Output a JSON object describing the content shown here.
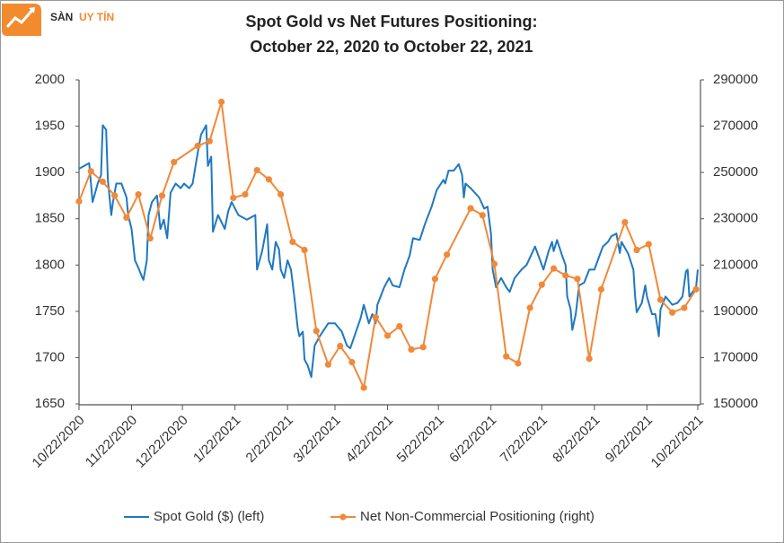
{
  "watermark": {
    "first": "SÀN",
    "second": "UY TÍN"
  },
  "chart_data": {
    "type": "line",
    "title": "Spot Gold vs Net Futures Positioning:",
    "subtitle": "October 22, 2020 to October 22, 2021",
    "xlim": [
      "10/22/2020",
      "10/22/2021"
    ],
    "xticks": [
      "10/22/2020",
      "11/22/2020",
      "12/22/2020",
      "1/22/2021",
      "2/22/2021",
      "3/22/2021",
      "4/22/2021",
      "5/22/2021",
      "6/22/2021",
      "7/22/2021",
      "8/22/2021",
      "9/22/2021",
      "10/22/2021"
    ],
    "ylim": [
      1650,
      2000
    ],
    "yticks": [
      1650,
      1700,
      1750,
      1800,
      1850,
      1900,
      1950,
      2000
    ],
    "y2lim": [
      150000,
      290000
    ],
    "y2ticks": [
      150000,
      170000,
      190000,
      210000,
      230000,
      250000,
      270000,
      290000
    ],
    "grid": false,
    "legend": "bottom",
    "series": [
      {
        "name": "Spot Gold ($) (left)",
        "color": "#1f78c1",
        "axis": "y",
        "x": [
          "10/22/2020",
          "10/28/2020",
          "10/30/2020",
          "11/2/2020",
          "11/4/2020",
          "11/5/2020",
          "11/7/2020",
          "11/8/2020",
          "11/10/2020",
          "11/11/2020",
          "11/13/2020",
          "11/16/2020",
          "11/19/2020",
          "11/20/2020",
          "11/22/2020",
          "11/24/2020",
          "11/26/2020",
          "11/28/2020",
          "11/29/2020",
          "12/1/2020",
          "12/2/2020",
          "12/4/2020",
          "12/7/2020",
          "12/9/2020",
          "12/11/2020",
          "12/13/2020",
          "12/15/2020",
          "12/18/2020",
          "12/21/2020",
          "12/23/2020",
          "12/26/2020",
          "12/28/2020",
          "12/31/2020",
          "1/2/2021",
          "1/5/2021",
          "1/6/2021",
          "1/8/2021",
          "1/9/2021",
          "1/12/2021",
          "1/16/2021",
          "1/18/2021",
          "1/20/2021",
          "1/24/2021",
          "1/29/2021",
          "2/3/2021",
          "2/4/2021",
          "2/7/2021",
          "2/9/2021",
          "2/10/2021",
          "2/11/2021",
          "2/13/2021",
          "2/15/2021",
          "2/17/2021",
          "2/18/2021",
          "2/20/2021",
          "2/22/2021",
          "2/24/2021",
          "2/26/2021",
          "2/28/2021",
          "3/1/2021",
          "3/3/2021",
          "3/4/2021",
          "3/6/2021",
          "3/8/2021",
          "3/10/2021",
          "3/13/2021",
          "3/18/2021",
          "3/22/2021",
          "3/26/2021",
          "3/29/2021",
          "3/31/2021",
          "4/3/2021",
          "4/6/2021",
          "4/8/2021",
          "4/11/2021",
          "4/13/2021",
          "4/15/2021",
          "4/16/2021",
          "4/20/2021",
          "4/23/2021",
          "4/25/2021",
          "4/29/2021",
          "5/2/2021",
          "5/5/2021",
          "5/7/2021",
          "5/11/2021",
          "5/14/2021",
          "5/18/2021",
          "5/21/2021",
          "5/25/2021",
          "5/26/2021",
          "5/28/2021",
          "5/31/2021",
          "6/3/2021",
          "6/5/2021",
          "6/6/2021",
          "6/7/2021",
          "6/10/2021",
          "6/15/2021",
          "6/18/2021",
          "6/20/2021",
          "6/22/2021",
          "6/23/2021",
          "6/25/2021",
          "6/28/2021",
          "7/1/2021",
          "7/3/2021",
          "7/6/2021",
          "7/10/2021",
          "7/13/2021",
          "7/16/2021",
          "7/18/2021",
          "7/20/2021",
          "7/23/2021",
          "7/26/2021",
          "7/28/2021",
          "7/29/2021",
          "7/31/2021",
          "8/3/2021",
          "8/5/2021",
          "8/6/2021",
          "8/8/2021",
          "8/9/2021",
          "8/11/2021",
          "8/13/2021",
          "8/16/2021",
          "8/19/2021",
          "8/22/2021",
          "8/25/2021",
          "8/27/2021",
          "8/30/2021",
          "9/1/2021",
          "9/4/2021",
          "9/6/2021",
          "9/7/2021",
          "9/11/2021",
          "9/14/2021",
          "9/15/2021",
          "9/16/2021",
          "9/19/2021",
          "9/21/2021",
          "9/22/2021",
          "9/25/2021",
          "9/27/2021",
          "9/29/2021",
          "9/30/2021",
          "10/3/2021",
          "10/7/2021",
          "10/10/2021",
          "10/13/2021",
          "10/15/2021",
          "10/16/2021",
          "10/17/2021",
          "10/19/2021",
          "10/21/2021",
          "10/22/2021"
        ],
        "values": [
          1904,
          1910,
          1868,
          1888,
          1897,
          1951,
          1946,
          1892,
          1854,
          1868,
          1888,
          1888,
          1873,
          1854,
          1839,
          1805,
          1797,
          1788,
          1784,
          1805,
          1854,
          1868,
          1875,
          1839,
          1849,
          1829,
          1878,
          1888,
          1883,
          1888,
          1883,
          1888,
          1921,
          1941,
          1951,
          1907,
          1917,
          1836,
          1854,
          1839,
          1858,
          1868,
          1854,
          1849,
          1854,
          1795,
          1815,
          1834,
          1844,
          1805,
          1795,
          1825,
          1817,
          1795,
          1786,
          1805,
          1795,
          1766,
          1732,
          1723,
          1728,
          1698,
          1691,
          1679,
          1713,
          1723,
          1737,
          1737,
          1728,
          1713,
          1710,
          1726,
          1742,
          1757,
          1737,
          1747,
          1737,
          1757,
          1776,
          1786,
          1778,
          1776,
          1795,
          1810,
          1829,
          1827,
          1844,
          1863,
          1881,
          1892,
          1888,
          1902,
          1902,
          1909,
          1897,
          1873,
          1888,
          1883,
          1873,
          1861,
          1863,
          1834,
          1795,
          1776,
          1786,
          1776,
          1771,
          1786,
          1795,
          1800,
          1812,
          1820,
          1810,
          1795,
          1815,
          1825,
          1815,
          1827,
          1810,
          1800,
          1766,
          1752,
          1730,
          1747,
          1778,
          1781,
          1795,
          1795,
          1810,
          1820,
          1825,
          1831,
          1834,
          1813,
          1825,
          1812,
          1795,
          1766,
          1749,
          1759,
          1778,
          1766,
          1747,
          1747,
          1723,
          1752,
          1766,
          1757,
          1759,
          1766,
          1793,
          1795,
          1766,
          1771,
          1776,
          1795
        ]
      },
      {
        "name": "Net Non-Commercial Positioning (right)",
        "color": "#f0893a",
        "axis": "y2",
        "marker": "circle",
        "x": [
          "10/22/2020",
          "10/29/2020",
          "11/5/2020",
          "11/12/2020",
          "11/19/2020",
          "11/26/2020",
          "12/3/2020",
          "12/10/2020",
          "12/17/2020",
          "12/31/2020",
          "1/7/2021",
          "1/14/2021",
          "1/21/2021",
          "1/28/2021",
          "2/4/2021",
          "2/11/2021",
          "2/18/2021",
          "2/25/2021",
          "3/4/2021",
          "3/11/2021",
          "3/18/2021",
          "3/25/2021",
          "4/1/2021",
          "4/8/2021",
          "4/15/2021",
          "4/22/2021",
          "4/29/2021",
          "5/6/2021",
          "5/13/2021",
          "5/20/2021",
          "5/27/2021",
          "6/10/2021",
          "6/17/2021",
          "6/24/2021",
          "7/1/2021",
          "7/8/2021",
          "7/15/2021",
          "7/22/2021",
          "7/29/2021",
          "8/5/2021",
          "8/12/2021",
          "8/19/2021",
          "8/26/2021",
          "9/9/2021",
          "9/16/2021",
          "9/23/2021",
          "9/30/2021",
          "10/7/2021",
          "10/14/2021",
          "10/21/2021"
        ],
        "values": [
          237500,
          250500,
          246000,
          240000,
          230500,
          240500,
          221500,
          240000,
          254500,
          261500,
          263500,
          280500,
          239000,
          240500,
          251000,
          247000,
          240500,
          220000,
          216500,
          181500,
          167000,
          175000,
          168000,
          157000,
          187500,
          179500,
          183500,
          173500,
          174500,
          204000,
          214500,
          234500,
          231500,
          210500,
          170500,
          167500,
          191500,
          201500,
          208500,
          205500,
          204000,
          169500,
          199500,
          228500,
          216500,
          219000,
          195000,
          189500,
          191500,
          199500
        ]
      }
    ]
  }
}
